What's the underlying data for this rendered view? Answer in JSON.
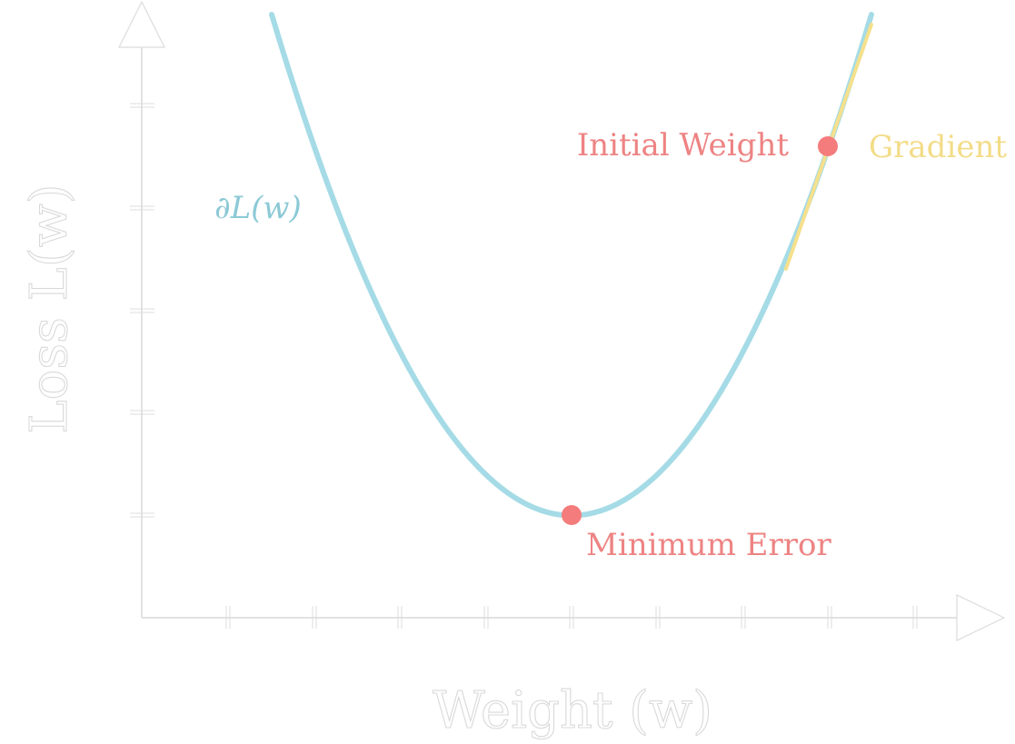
{
  "colors": {
    "curve": "#a5dbe6",
    "curve_edge": "#8fcad8",
    "point": "#f47c7c",
    "tangent": "#f5e08c",
    "axis": "#dcdcdc"
  },
  "axes": {
    "x_label": "Weight (w)",
    "y_label": "Loss L(w)",
    "x_ticks": 9,
    "y_ticks": 5
  },
  "curve": {
    "label": "∂L(w)",
    "min_point_label": "Minimum Error",
    "initial_point_label": "Initial Weight",
    "tangent_label": "Gradient"
  }
}
